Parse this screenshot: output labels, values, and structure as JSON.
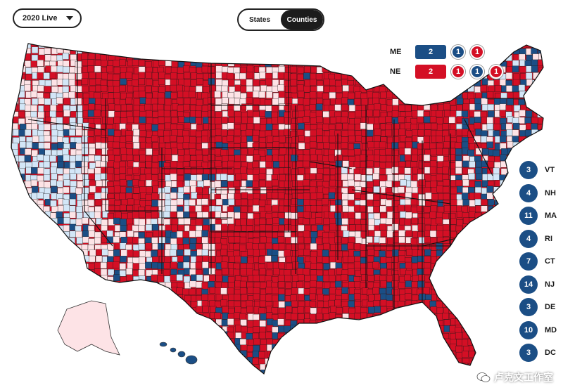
{
  "header": {
    "year_select": "2020 Live",
    "view_toggle": {
      "states": "States",
      "counties": "Counties",
      "active": "counties"
    }
  },
  "colors": {
    "rep_solid": "#d40f25",
    "rep_light": "#fde3e6",
    "dem_solid": "#1b4e85",
    "dem_light": "#d3e6f7",
    "border": "#1a1a1a"
  },
  "split_states": [
    {
      "state": "ME",
      "statewide": "2",
      "statewide_party": "dem",
      "districts": [
        {
          "votes": "1",
          "party": "dem"
        },
        {
          "votes": "1",
          "party": "rep"
        }
      ]
    },
    {
      "state": "NE",
      "statewide": "2",
      "statewide_party": "rep",
      "districts": [
        {
          "votes": "1",
          "party": "rep"
        },
        {
          "votes": "1",
          "party": "dem"
        },
        {
          "votes": "1",
          "party": "rep"
        }
      ]
    }
  ],
  "small_states": [
    {
      "abbr": "VT",
      "votes": "3",
      "party": "dem"
    },
    {
      "abbr": "NH",
      "votes": "4",
      "party": "dem"
    },
    {
      "abbr": "MA",
      "votes": "11",
      "party": "dem"
    },
    {
      "abbr": "RI",
      "votes": "4",
      "party": "dem"
    },
    {
      "abbr": "CT",
      "votes": "7",
      "party": "dem"
    },
    {
      "abbr": "NJ",
      "votes": "14",
      "party": "dem"
    },
    {
      "abbr": "DE",
      "votes": "3",
      "party": "dem"
    },
    {
      "abbr": "MD",
      "votes": "10",
      "party": "dem"
    },
    {
      "abbr": "DC",
      "votes": "3",
      "party": "dem"
    }
  ],
  "watermark": "卢克文工作室"
}
